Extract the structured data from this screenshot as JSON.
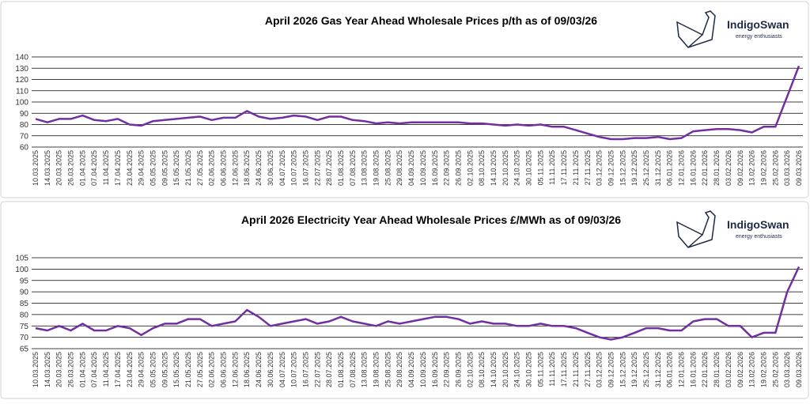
{
  "logo": {
    "name": "IndigoSwan",
    "tagline": "energy enthusiasts"
  },
  "chart_data": [
    {
      "type": "line",
      "title": "April 2026 Gas Year Ahead Wholesale Prices p/th as of 09/03/26",
      "categories": [
        "10.03.2025",
        "14.03.2025",
        "20.03.2025",
        "26.03.2025",
        "01.04.2025",
        "07.04.2025",
        "11.04.2025",
        "17.04.2025",
        "23.04.2025",
        "29.04.2025",
        "05.05.2025",
        "09.05.2025",
        "15.05.2025",
        "21.05.2025",
        "27.05.2025",
        "02.06.2025",
        "06.06.2025",
        "12.06.2025",
        "18.06.2025",
        "24.06.2025",
        "30.06.2025",
        "04.07.2025",
        "10.07.2025",
        "16.07.2025",
        "22.07.2025",
        "28.07.2025",
        "01.08.2025",
        "07.08.2025",
        "13.08.2025",
        "19.08.2025",
        "25.08.2025",
        "29.08.2025",
        "04.09.2025",
        "10.09.2025",
        "16.09.2025",
        "22.09.2025",
        "26.09.2025",
        "02.10.2025",
        "08.10.2025",
        "14.10.2025",
        "20.10.2025",
        "24.10.2025",
        "30.10.2025",
        "05.11.2025",
        "11.11.2025",
        "17.11.2025",
        "21.11.2025",
        "27.11.2025",
        "03.12.2025",
        "09.12.2025",
        "15.12.2025",
        "19.12.2025",
        "25.12.2025",
        "31.12.2025",
        "06.01.2026",
        "12.01.2026",
        "16.01.2026",
        "22.01.2026",
        "28.01.2026",
        "03.02.2026",
        "09.02.2026",
        "13.02.2026",
        "19.02.2026",
        "25.02.2026",
        "03.03.2026",
        "09.03.2026"
      ],
      "values": [
        85,
        82,
        85,
        85,
        88,
        84,
        83,
        85,
        80,
        79,
        83,
        84,
        85,
        86,
        87,
        84,
        86,
        86,
        92,
        87,
        85,
        86,
        88,
        87,
        84,
        87,
        87,
        84,
        83,
        81,
        82,
        81,
        82,
        82,
        82,
        82,
        82,
        81,
        81,
        80,
        79,
        80,
        79,
        80,
        78,
        78,
        75,
        72,
        69,
        67,
        67,
        68,
        68,
        69,
        67,
        68,
        74,
        75,
        76,
        76,
        75,
        73,
        78,
        78,
        105,
        132
      ],
      "color": "#7030a0",
      "ylim": [
        60,
        140
      ],
      "yticks": [
        60,
        70,
        80,
        90,
        100,
        110,
        120,
        130,
        140
      ],
      "grid": true
    },
    {
      "type": "line",
      "title": "April 2026 Electricity Year Ahead Wholesale Prices £/MWh as of 09/03/26",
      "categories": [
        "10.03.2025",
        "14.03.2025",
        "20.03.2025",
        "26.03.2025",
        "01.04.2025",
        "07.04.2025",
        "11.04.2025",
        "17.04.2025",
        "23.04.2025",
        "29.04.2025",
        "05.05.2025",
        "09.05.2025",
        "15.05.2025",
        "21.05.2025",
        "27.05.2025",
        "02.06.2025",
        "06.06.2025",
        "12.06.2025",
        "18.06.2025",
        "24.06.2025",
        "30.06.2025",
        "04.07.2025",
        "10.07.2025",
        "16.07.2025",
        "22.07.2025",
        "28.07.2025",
        "01.08.2025",
        "07.08.2025",
        "13.08.2025",
        "19.08.2025",
        "25.08.2025",
        "29.08.2025",
        "04.09.2025",
        "10.09.2025",
        "16.09.2025",
        "22.09.2025",
        "26.09.2025",
        "02.10.2025",
        "08.10.2025",
        "14.10.2025",
        "20.10.2025",
        "24.10.2025",
        "30.10.2025",
        "05.11.2025",
        "11.11.2025",
        "17.11.2025",
        "21.11.2025",
        "27.11.2025",
        "03.12.2025",
        "09.12.2025",
        "15.12.2025",
        "19.12.2025",
        "25.12.2025",
        "31.12.2025",
        "06.01.2026",
        "12.01.2026",
        "16.01.2026",
        "22.01.2026",
        "28.01.2026",
        "03.02.2026",
        "09.02.2026",
        "13.02.2026",
        "19.02.2026",
        "25.02.2026",
        "03.03.2026",
        "09.03.2026"
      ],
      "values": [
        74,
        73,
        75,
        73,
        76,
        73,
        73,
        75,
        74,
        71,
        74,
        76,
        76,
        78,
        78,
        75,
        76,
        77,
        82,
        79,
        75,
        76,
        77,
        78,
        76,
        77,
        79,
        77,
        76,
        75,
        77,
        76,
        77,
        78,
        79,
        79,
        78,
        76,
        77,
        76,
        76,
        75,
        75,
        76,
        75,
        75,
        74,
        72,
        70,
        69,
        70,
        72,
        74,
        74,
        73,
        73,
        77,
        78,
        78,
        75,
        75,
        70,
        72,
        72,
        90,
        101
      ],
      "color": "#7030a0",
      "ylim": [
        65,
        105
      ],
      "yticks": [
        65,
        70,
        75,
        80,
        85,
        90,
        95,
        100,
        105
      ],
      "grid": true
    }
  ]
}
